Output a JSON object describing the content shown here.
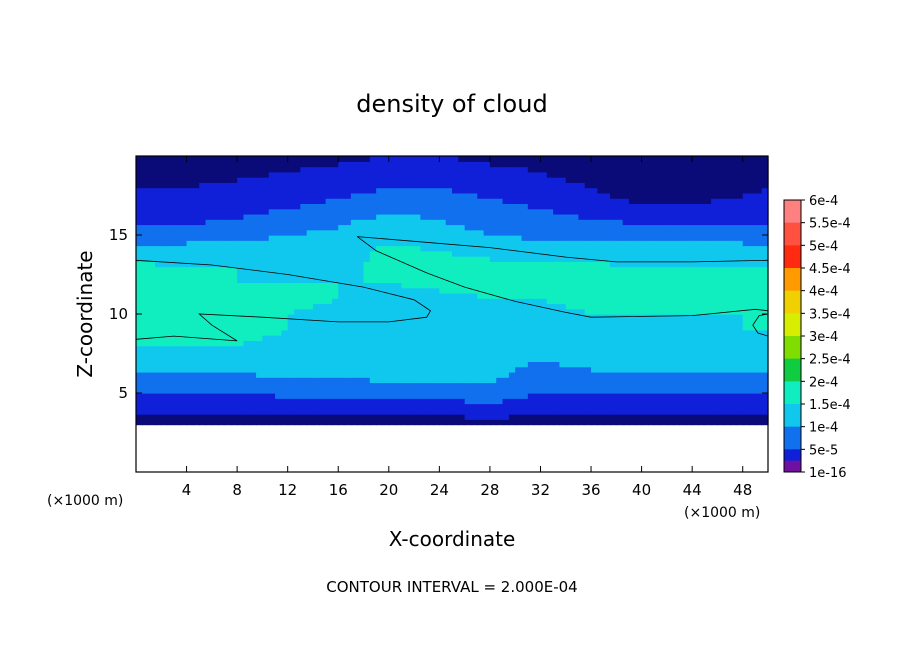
{
  "chart_data": {
    "type": "heatmap",
    "title": "density of cloud",
    "xlabel": "X-coordinate",
    "ylabel": "Z-coordinate",
    "x_unit": "(×1000 m)",
    "z_unit": "(×1000 m)",
    "xlim": [
      0,
      50
    ],
    "ylim": [
      0,
      20
    ],
    "xticks": [
      4,
      8,
      12,
      16,
      20,
      24,
      28,
      32,
      36,
      40,
      44,
      48
    ],
    "yticks": [
      5,
      10,
      15
    ],
    "footer": "CONTOUR INTERVAL = 2.000E-04",
    "contour_interval": 0.0002,
    "colorbar": {
      "labels": [
        "6e-4",
        "5.5e-4",
        "5e-4",
        "4.5e-4",
        "4e-4",
        "3.5e-4",
        "3e-4",
        "2.5e-4",
        "2e-4",
        "1.5e-4",
        "1e-4",
        "5e-5",
        "1e-16"
      ],
      "values": [
        0.0006,
        0.00055,
        0.0005,
        0.00045,
        0.0004,
        0.00035,
        0.0003,
        0.00025,
        0.0002,
        0.00015,
        0.0001,
        5e-05,
        1e-16
      ],
      "colors": [
        "#ff8080",
        "#ff5040",
        "#ff2a10",
        "#ff9a00",
        "#f0d000",
        "#d8ee00",
        "#80dd00",
        "#10cc40",
        "#10eec0",
        "#10c8ee",
        "#1070ee",
        "#1020d8",
        "#0a0a78",
        "#7010a0"
      ]
    },
    "field_description_grid": {
      "x": [
        0,
        4,
        8,
        12,
        16,
        20,
        24,
        28,
        32,
        36,
        40,
        44,
        48,
        50
      ],
      "z": [
        3,
        4,
        5,
        6,
        7,
        8,
        9,
        10,
        11,
        12,
        13,
        14,
        15,
        16,
        17,
        18,
        19,
        20
      ],
      "values_e4": [
        [
          0.2,
          0.2,
          0.2,
          0.2,
          0.2,
          0.2,
          0.2,
          0.3,
          0.2,
          0.2,
          0.2,
          0.2,
          0.2,
          0.2
        ],
        [
          0.6,
          0.6,
          0.6,
          0.6,
          0.7,
          0.7,
          0.7,
          0.8,
          0.6,
          0.6,
          0.6,
          0.6,
          0.6,
          0.6
        ],
        [
          1.0,
          1.0,
          1.0,
          1.1,
          1.1,
          1.2,
          1.2,
          1.3,
          1.0,
          1.0,
          1.0,
          1.0,
          1.0,
          1.0
        ],
        [
          1.4,
          1.4,
          1.4,
          1.5,
          1.5,
          1.6,
          1.6,
          1.6,
          1.3,
          1.4,
          1.4,
          1.4,
          1.4,
          1.4
        ],
        [
          1.8,
          1.8,
          1.8,
          1.8,
          1.8,
          1.8,
          1.7,
          1.6,
          1.5,
          1.6,
          1.7,
          1.7,
          1.7,
          1.8
        ],
        [
          2.0,
          2.0,
          2.0,
          1.9,
          1.9,
          1.8,
          1.8,
          1.7,
          1.7,
          1.7,
          1.8,
          1.9,
          1.9,
          2.0
        ],
        [
          2.1,
          2.2,
          2.1,
          2.0,
          1.9,
          1.9,
          1.8,
          1.8,
          1.8,
          1.8,
          1.9,
          1.9,
          2.0,
          2.0
        ],
        [
          2.1,
          2.2,
          2.1,
          2.0,
          1.9,
          1.9,
          1.9,
          1.9,
          1.9,
          2.0,
          2.0,
          2.0,
          2.0,
          2.0
        ],
        [
          2.1,
          2.1,
          2.1,
          2.1,
          2.0,
          1.9,
          1.9,
          2.0,
          2.0,
          2.1,
          2.1,
          2.1,
          2.1,
          2.1
        ],
        [
          2.1,
          2.1,
          2.0,
          2.0,
          2.0,
          2.0,
          2.1,
          2.1,
          2.1,
          2.1,
          2.1,
          2.1,
          2.1,
          2.1
        ],
        [
          2.1,
          2.0,
          2.0,
          1.9,
          1.9,
          2.1,
          2.1,
          2.1,
          2.1,
          2.1,
          2.0,
          2.0,
          2.0,
          2.0
        ],
        [
          1.7,
          1.7,
          1.7,
          1.7,
          1.8,
          2.1,
          2.0,
          1.9,
          1.8,
          1.7,
          1.7,
          1.7,
          1.7,
          1.7
        ],
        [
          1.2,
          1.3,
          1.4,
          1.5,
          1.6,
          1.9,
          1.7,
          1.5,
          1.4,
          1.3,
          1.3,
          1.3,
          1.3,
          1.2
        ],
        [
          0.9,
          0.9,
          1.0,
          1.2,
          1.4,
          1.6,
          1.5,
          1.3,
          1.2,
          1.0,
          0.9,
          0.9,
          0.9,
          0.9
        ],
        [
          0.7,
          0.7,
          0.8,
          0.9,
          1.1,
          1.3,
          1.3,
          1.1,
          0.9,
          0.7,
          0.5,
          0.5,
          0.6,
          0.7
        ],
        [
          0.5,
          0.5,
          0.6,
          0.7,
          0.8,
          1.0,
          1.0,
          0.8,
          0.7,
          0.5,
          0.2,
          0.3,
          0.4,
          0.5
        ],
        [
          0.4,
          0.4,
          0.4,
          0.5,
          0.6,
          0.7,
          0.7,
          0.6,
          0.5,
          0.3,
          0.1,
          0.2,
          0.3,
          0.4
        ],
        [
          0.3,
          0.3,
          0.3,
          0.4,
          0.4,
          0.5,
          0.5,
          0.4,
          0.4,
          0.2,
          0.1,
          0.1,
          0.2,
          0.3
        ]
      ]
    }
  }
}
